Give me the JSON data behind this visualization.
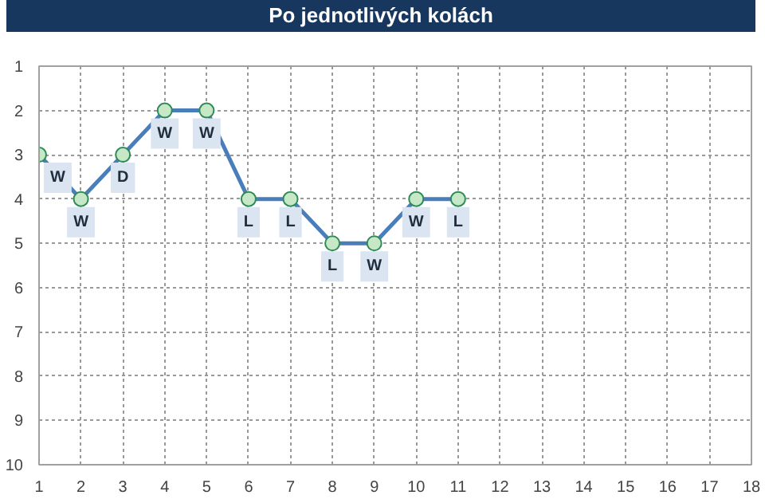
{
  "chart_data": {
    "type": "line",
    "title": "Po jednotlivých kolách",
    "x": [
      1,
      2,
      3,
      4,
      5,
      6,
      7,
      8,
      9,
      10,
      11
    ],
    "series": [
      {
        "color": "#4a7ebb",
        "values": [
          3,
          4,
          3,
          2,
          2,
          4,
          4,
          5,
          5,
          4,
          4
        ]
      }
    ],
    "xlim": [
      1,
      18
    ],
    "xticks": [
      1,
      2,
      3,
      4,
      5,
      6,
      7,
      8,
      9,
      10,
      11,
      12,
      13,
      14,
      15,
      16,
      17,
      18
    ],
    "ylim": [
      10,
      1
    ],
    "yticks": [
      1,
      2,
      3,
      4,
      5,
      6,
      7,
      8,
      9,
      10
    ],
    "grid": true,
    "marker": "circle",
    "line_style": "solid",
    "annotations": [
      {
        "text": "W",
        "x": 1,
        "y": 3
      },
      {
        "text": "W",
        "x": 2,
        "y": 4
      },
      {
        "text": "D",
        "x": 3,
        "y": 3
      },
      {
        "text": "W",
        "x": 4,
        "y": 2
      },
      {
        "text": "W",
        "x": 5,
        "y": 2
      },
      {
        "text": "L",
        "x": 6,
        "y": 4
      },
      {
        "text": "L",
        "x": 7,
        "y": 4
      },
      {
        "text": "L",
        "x": 8,
        "y": 5
      },
      {
        "text": "W",
        "x": 9,
        "y": 5
      },
      {
        "text": "W",
        "x": 10,
        "y": 4
      },
      {
        "text": "L",
        "x": 11,
        "y": 4
      }
    ]
  }
}
